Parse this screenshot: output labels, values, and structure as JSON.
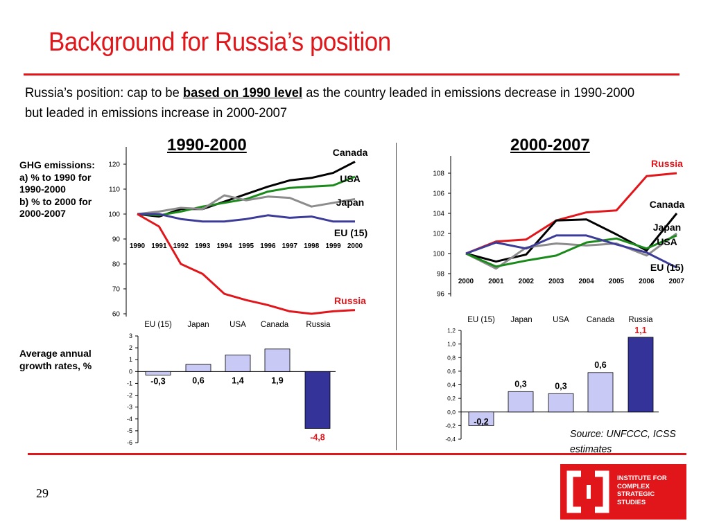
{
  "slide": {
    "title": "Background for Russia’s position",
    "subtitle_pre": "Russia’s position: cap to be ",
    "subtitle_em": "based on 1990 level",
    "subtitle_post": " as the country leaded in emissions decrease in 1990-2000 but leaded in emissions increase in 2000-2007",
    "ghg_label": "GHG emissions:\na) % to 1990 for 1990-2000\nb) % to 2000 for 2000-2007",
    "growth_label": "Average annual growth rates, %",
    "source": "Source: UNFCCC, ICSS estimates",
    "page_number": "29",
    "logo_text": "INSTITUTE FOR\nCOMPLEX\nSTRATEGIC\nSTUDIES"
  },
  "colors": {
    "accent": "#e0161b",
    "Canada": "#000000",
    "USA": "#1a8a1a",
    "Japan": "#8c8c8c",
    "EU (15)": "#3c3c98",
    "Russia": "#e0161b",
    "bar_light": "#c9c9f5",
    "bar_dark": "#333399"
  },
  "chart_data": [
    {
      "type": "line",
      "title": "1990-2000",
      "x": [
        "1990",
        "1991",
        "1992",
        "1993",
        "1994",
        "1995",
        "1996",
        "1997",
        "1998",
        "1999",
        "2000"
      ],
      "ylim": [
        60,
        120
      ],
      "yticks": [
        60,
        70,
        80,
        90,
        100,
        110,
        120
      ],
      "series": [
        {
          "name": "Canada",
          "values": [
            100,
            99,
            102,
            102,
            105,
            108,
            111,
            113.5,
            114.5,
            116.5,
            121
          ]
        },
        {
          "name": "USA",
          "values": [
            100,
            99.5,
            101,
            103,
            104.5,
            106,
            109,
            110.5,
            111,
            111.5,
            115
          ]
        },
        {
          "name": "Japan",
          "values": [
            100,
            101,
            102.5,
            102,
            107.5,
            105.5,
            107,
            106.5,
            103,
            104.5,
            106
          ]
        },
        {
          "name": "EU (15)",
          "values": [
            100,
            100,
            98,
            97,
            97,
            98,
            99.5,
            98.5,
            99,
            97,
            97
          ]
        },
        {
          "name": "Russia",
          "values": [
            100,
            95,
            80,
            76,
            68,
            65.5,
            63.5,
            61,
            60,
            61,
            61.5
          ]
        }
      ]
    },
    {
      "type": "line",
      "title": "2000-2007",
      "x": [
        "2000",
        "2001",
        "2002",
        "2003",
        "2004",
        "2005",
        "2006",
        "2007"
      ],
      "ylim": [
        96,
        108
      ],
      "yticks": [
        96,
        98,
        100,
        102,
        104,
        106,
        108
      ],
      "series": [
        {
          "name": "Russia",
          "values": [
            100,
            101.2,
            101.4,
            103.3,
            104.1,
            104.3,
            107.7,
            108
          ]
        },
        {
          "name": "Canada",
          "values": [
            100,
            99.2,
            99.9,
            103.3,
            103.4,
            101.9,
            100.3,
            104
          ]
        },
        {
          "name": "Japan",
          "values": [
            100,
            98.5,
            100.6,
            101,
            100.8,
            101,
            99.8,
            102
          ]
        },
        {
          "name": "USA",
          "values": [
            100,
            98.7,
            99.3,
            99.8,
            101.1,
            101.5,
            100.5,
            101.8
          ]
        },
        {
          "name": "EU (15)",
          "values": [
            100,
            101.1,
            100.5,
            101.8,
            101.8,
            100.9,
            100.1,
            98.6
          ]
        }
      ]
    },
    {
      "type": "bar",
      "title": "",
      "categories": [
        "EU (15)",
        "Japan",
        "USA",
        "Canada",
        "Russia"
      ],
      "values": [
        -0.3,
        0.6,
        1.4,
        1.9,
        -4.8
      ],
      "labels": [
        "-0,3",
        "0,6",
        "1,4",
        "1,9",
        "-4,8"
      ],
      "ylim": [
        -6,
        3
      ],
      "yticks": [
        "-6",
        "-5",
        "-4",
        "-3",
        "-2",
        "-1",
        "0",
        "1",
        "2",
        "3"
      ]
    },
    {
      "type": "bar",
      "title": "",
      "categories": [
        "EU (15)",
        "Japan",
        "USA",
        "Canada",
        "Russia"
      ],
      "values": [
        -0.2,
        0.3,
        0.27,
        0.58,
        1.1
      ],
      "labels": [
        "-0,2",
        "0,3",
        "0,3",
        "0,6",
        "1,1"
      ],
      "ylim": [
        -0.4,
        1.2
      ],
      "yticks": [
        "-0,4",
        "-0,2",
        "0,0",
        "0,2",
        "0,4",
        "0,6",
        "0,8",
        "1,0",
        "1,2"
      ]
    }
  ]
}
